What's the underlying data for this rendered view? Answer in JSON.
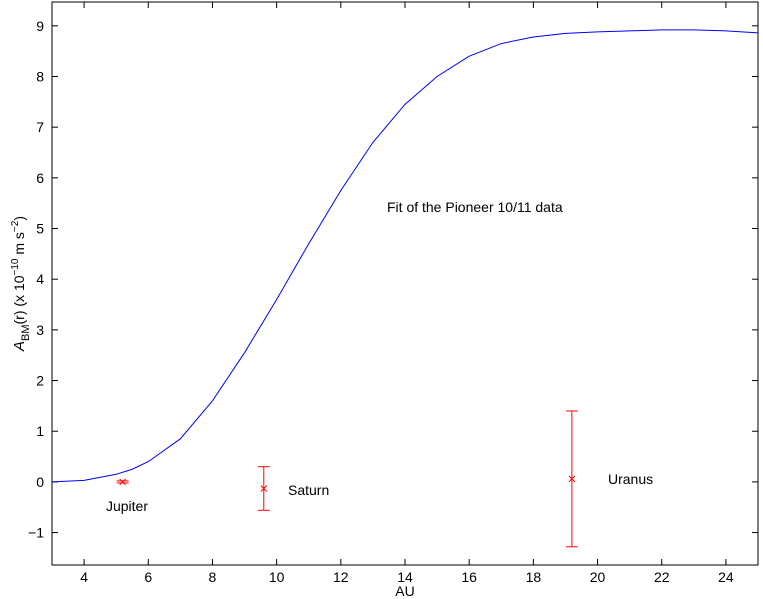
{
  "chart_data": {
    "type": "line",
    "xlabel": "AU",
    "ylabel": [
      "A",
      "BM",
      "(r) (x 10",
      "−10",
      " m s",
      "−2",
      ")"
    ],
    "annotations": [
      "Fit of the Pioneer 10/11 data",
      "Jupiter",
      "Saturn",
      "Uranus"
    ],
    "x": [
      3,
      4,
      5,
      5.5,
      6,
      7,
      8,
      9,
      10,
      11,
      12,
      13,
      14,
      15,
      16,
      17,
      18,
      19,
      20,
      21,
      22,
      23,
      24,
      25
    ],
    "series": [
      {
        "color": "#0000ff",
        "values": [
          0,
          0.03,
          0.15,
          0.25,
          0.4,
          0.85,
          1.6,
          2.55,
          3.6,
          4.7,
          5.75,
          6.7,
          7.45,
          8.0,
          8.4,
          8.65,
          8.78,
          8.85,
          8.88,
          8.9,
          8.92,
          8.92,
          8.9,
          8.86
        ]
      }
    ],
    "errorbars": {
      "color": "#ff0000",
      "x": [
        5.2,
        9.6,
        19.2
      ],
      "values": [
        0,
        -0.13,
        0.06
      ],
      "errors": [
        0.02,
        0.43,
        1.34
      ]
    },
    "xlim": [
      3,
      25
    ],
    "ylim": [
      -1.64,
      9.47
    ],
    "xticks": [
      4,
      6,
      8,
      10,
      12,
      14,
      16,
      18,
      20,
      22,
      24
    ],
    "yticks": [
      {
        "value": -1,
        "label": "−1"
      },
      0,
      1,
      2,
      3,
      4,
      5,
      6,
      7,
      8,
      9
    ],
    "grid": false
  }
}
